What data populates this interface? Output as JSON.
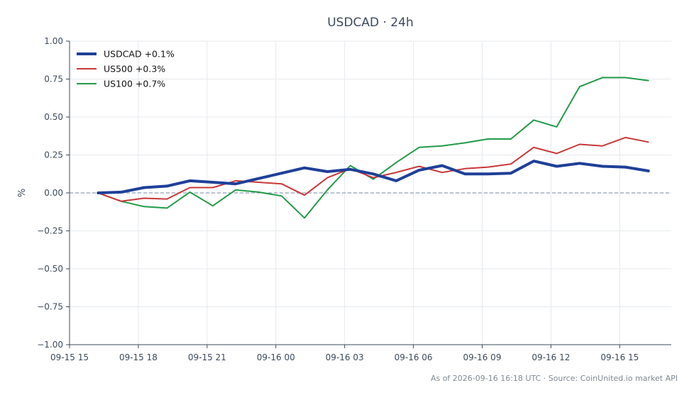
{
  "chart_data": {
    "type": "line",
    "title": "USDCAD · 24h",
    "ylabel": "%",
    "xlabel": "",
    "ylim": [
      -1.0,
      1.0
    ],
    "yticks": [
      "1.00",
      "0.75",
      "0.50",
      "0.25",
      "0.00",
      "−0.25",
      "−0.50",
      "−0.75",
      "−1.00"
    ],
    "ytick_values": [
      1.0,
      0.75,
      0.5,
      0.25,
      0.0,
      -0.25,
      -0.5,
      -0.75,
      -1.0
    ],
    "xlim": [
      "09-15 15:00",
      "09-16 17:15"
    ],
    "xticks": [
      "09-15 15",
      "09-15 18",
      "09-15 21",
      "09-16 00",
      "09-16 03",
      "09-16 06",
      "09-16 09",
      "09-16 12",
      "09-16 15"
    ],
    "xtick_values": [
      "09-15 15:00",
      "09-15 18:00",
      "09-15 21:00",
      "09-16 00:00",
      "09-16 03:00",
      "09-16 06:00",
      "09-16 09:00",
      "09-16 12:00",
      "09-16 15:00"
    ],
    "grid": true,
    "zero_line": true,
    "legend_position": "top-left",
    "x": [
      "09-15 16:15",
      "09-15 17:15",
      "09-15 18:15",
      "09-15 19:15",
      "09-15 20:15",
      "09-15 21:15",
      "09-15 22:15",
      "09-15 23:15",
      "09-16 00:15",
      "09-16 01:15",
      "09-16 02:15",
      "09-16 03:15",
      "09-16 04:15",
      "09-16 05:15",
      "09-16 06:15",
      "09-16 07:15",
      "09-16 08:15",
      "09-16 09:15",
      "09-16 10:15",
      "09-16 11:15",
      "09-16 12:15",
      "09-16 13:15",
      "09-16 14:15",
      "09-16 15:15",
      "09-16 16:15"
    ],
    "series": [
      {
        "name": "USDCAD +0.1%",
        "color": "#1f3f99",
        "width": 4,
        "values": [
          0.0,
          0.005,
          0.035,
          0.045,
          0.08,
          0.07,
          0.06,
          0.095,
          0.13,
          0.165,
          0.14,
          0.155,
          0.125,
          0.08,
          0.15,
          0.18,
          0.125,
          0.125,
          0.13,
          0.21,
          0.175,
          0.195,
          0.175,
          0.17,
          0.145
        ]
      },
      {
        "name": "US500 +0.3%",
        "color": "#c8383a",
        "width": 2,
        "values": [
          0.0,
          -0.055,
          -0.035,
          -0.04,
          0.035,
          0.035,
          0.08,
          0.07,
          0.06,
          -0.015,
          0.1,
          0.16,
          0.1,
          0.135,
          0.175,
          0.135,
          0.16,
          0.17,
          0.19,
          0.3,
          0.26,
          0.32,
          0.31,
          0.365,
          0.335
        ]
      },
      {
        "name": "US100 +0.7%",
        "color": "#239a4a",
        "width": 2,
        "values": [
          0.0,
          -0.055,
          -0.09,
          -0.1,
          0.005,
          -0.085,
          0.02,
          0.005,
          -0.02,
          -0.165,
          0.02,
          0.18,
          0.09,
          0.2,
          0.3,
          0.31,
          0.33,
          0.355,
          0.355,
          0.48,
          0.435,
          0.7,
          0.76,
          0.76,
          0.74
        ]
      }
    ],
    "colors": {
      "axis": "#3b4a5c",
      "grid": "#e6e9ee",
      "zero_line": "#8fa0b5"
    }
  },
  "footer": "As of 2026-09-16 16:18 UTC · Source: CoinUnited.io market API"
}
